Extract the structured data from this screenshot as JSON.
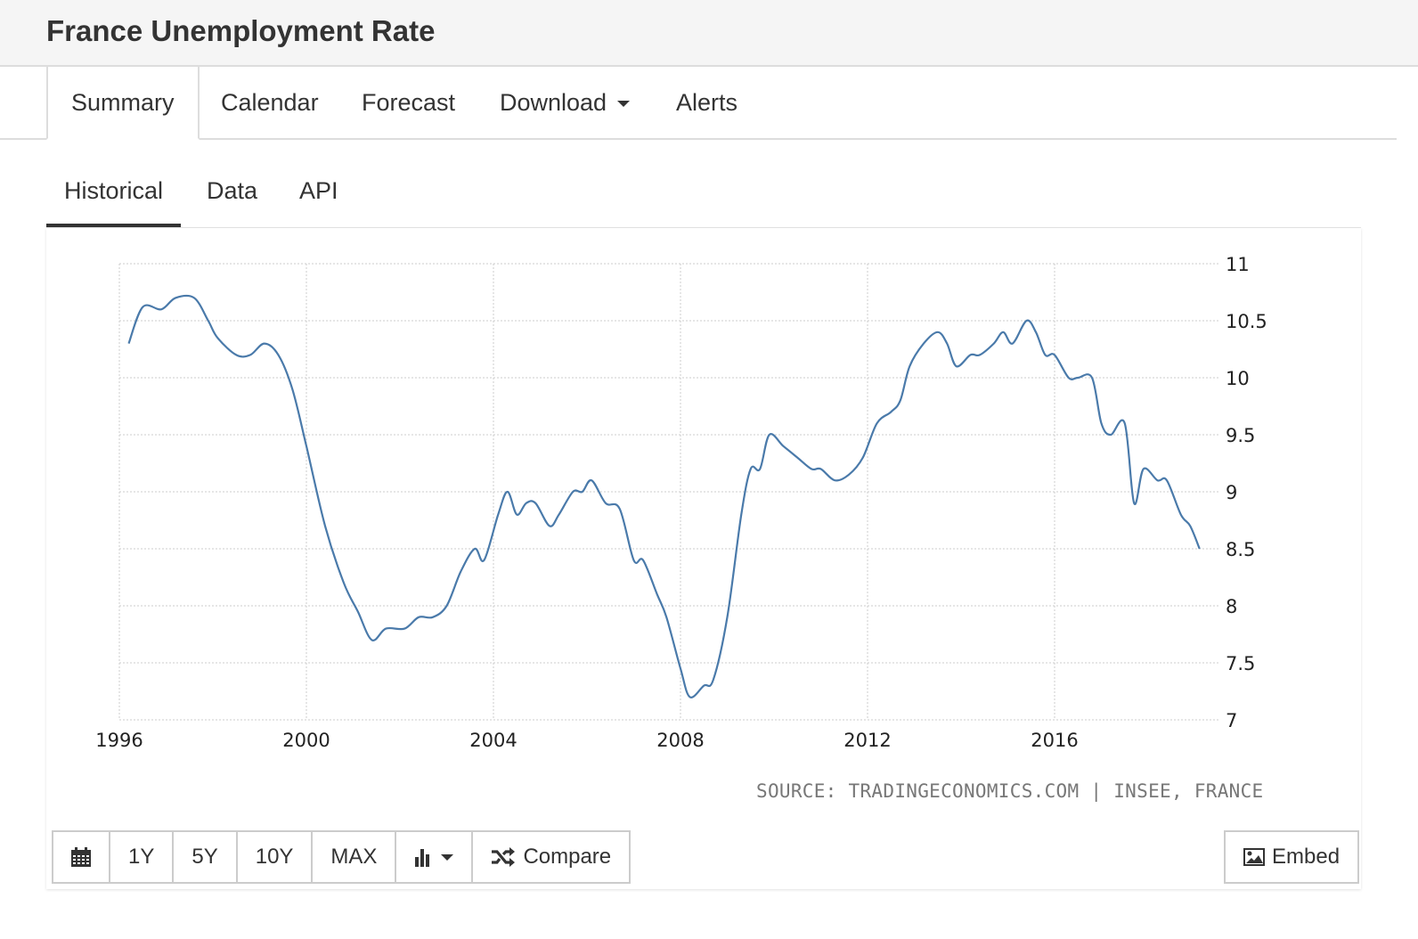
{
  "header": {
    "title": "France Unemployment Rate"
  },
  "nav": {
    "tabs": [
      {
        "label": "Summary"
      },
      {
        "label": "Calendar"
      },
      {
        "label": "Forecast"
      },
      {
        "label": "Download"
      },
      {
        "label": "Alerts"
      }
    ]
  },
  "subnav": {
    "tabs": [
      {
        "label": "Historical"
      },
      {
        "label": "Data"
      },
      {
        "label": "API"
      }
    ]
  },
  "source": "SOURCE: TRADINGECONOMICS.COM | INSEE, FRANCE",
  "controls": {
    "buttons": [
      "1Y",
      "5Y",
      "10Y",
      "MAX"
    ],
    "compare": "Compare",
    "embed": "Embed"
  },
  "colors": {
    "line": "#4a7aaa",
    "grid": "#cccccc"
  },
  "chart_data": {
    "type": "line",
    "title": "France Unemployment Rate",
    "xlabel": "",
    "ylabel": "",
    "xlim": [
      1996,
      2019.5
    ],
    "ylim": [
      7,
      11
    ],
    "x_ticks": [
      1996,
      2000,
      2004,
      2008,
      2012,
      2016
    ],
    "y_ticks": [
      7,
      7.5,
      8,
      8.5,
      9,
      9.5,
      10,
      10.5,
      11
    ],
    "y_tick_labels": [
      "7",
      "7.5",
      "8",
      "8.5",
      "9",
      "9.5",
      "10",
      "10.5",
      "11"
    ],
    "grid": true,
    "legend": "none",
    "series": [
      {
        "name": "Unemployment Rate",
        "points": [
          [
            1996.2,
            10.3
          ],
          [
            1996.5,
            10.62
          ],
          [
            1996.9,
            10.6
          ],
          [
            1997.2,
            10.7
          ],
          [
            1997.6,
            10.7
          ],
          [
            1997.9,
            10.5
          ],
          [
            1998.1,
            10.35
          ],
          [
            1998.5,
            10.2
          ],
          [
            1998.8,
            10.2
          ],
          [
            1999.1,
            10.3
          ],
          [
            1999.4,
            10.2
          ],
          [
            1999.7,
            9.9
          ],
          [
            2000.0,
            9.4
          ],
          [
            2000.4,
            8.7
          ],
          [
            2000.8,
            8.2
          ],
          [
            2001.1,
            7.95
          ],
          [
            2001.4,
            7.7
          ],
          [
            2001.7,
            7.8
          ],
          [
            2002.1,
            7.8
          ],
          [
            2002.4,
            7.9
          ],
          [
            2002.7,
            7.9
          ],
          [
            2003.0,
            8.0
          ],
          [
            2003.3,
            8.3
          ],
          [
            2003.6,
            8.5
          ],
          [
            2003.8,
            8.4
          ],
          [
            2004.1,
            8.8
          ],
          [
            2004.3,
            9.0
          ],
          [
            2004.5,
            8.8
          ],
          [
            2004.7,
            8.9
          ],
          [
            2004.9,
            8.9
          ],
          [
            2005.2,
            8.7
          ],
          [
            2005.4,
            8.8
          ],
          [
            2005.7,
            9.0
          ],
          [
            2005.9,
            9.0
          ],
          [
            2006.1,
            9.1
          ],
          [
            2006.4,
            8.9
          ],
          [
            2006.7,
            8.85
          ],
          [
            2007.0,
            8.4
          ],
          [
            2007.2,
            8.4
          ],
          [
            2007.5,
            8.1
          ],
          [
            2007.7,
            7.9
          ],
          [
            2008.0,
            7.45
          ],
          [
            2008.2,
            7.2
          ],
          [
            2008.5,
            7.3
          ],
          [
            2008.7,
            7.35
          ],
          [
            2009.0,
            7.9
          ],
          [
            2009.3,
            8.8
          ],
          [
            2009.5,
            9.2
          ],
          [
            2009.7,
            9.2
          ],
          [
            2009.9,
            9.5
          ],
          [
            2010.2,
            9.4
          ],
          [
            2010.5,
            9.3
          ],
          [
            2010.8,
            9.2
          ],
          [
            2011.0,
            9.2
          ],
          [
            2011.3,
            9.1
          ],
          [
            2011.6,
            9.15
          ],
          [
            2011.9,
            9.3
          ],
          [
            2012.2,
            9.6
          ],
          [
            2012.5,
            9.7
          ],
          [
            2012.7,
            9.8
          ],
          [
            2012.9,
            10.1
          ],
          [
            2013.2,
            10.3
          ],
          [
            2013.5,
            10.4
          ],
          [
            2013.7,
            10.3
          ],
          [
            2013.9,
            10.1
          ],
          [
            2014.2,
            10.2
          ],
          [
            2014.4,
            10.2
          ],
          [
            2014.7,
            10.3
          ],
          [
            2014.9,
            10.4
          ],
          [
            2015.1,
            10.3
          ],
          [
            2015.4,
            10.5
          ],
          [
            2015.6,
            10.4
          ],
          [
            2015.8,
            10.2
          ],
          [
            2016.0,
            10.2
          ],
          [
            2016.3,
            10.0
          ],
          [
            2016.5,
            10.0
          ],
          [
            2016.8,
            10.0
          ],
          [
            2017.0,
            9.6
          ],
          [
            2017.2,
            9.5
          ],
          [
            2017.5,
            9.6
          ],
          [
            2017.7,
            8.9
          ],
          [
            2017.9,
            9.2
          ],
          [
            2018.2,
            9.1
          ],
          [
            2018.4,
            9.1
          ],
          [
            2018.7,
            8.8
          ],
          [
            2018.9,
            8.7
          ],
          [
            2019.1,
            8.5
          ]
        ]
      }
    ]
  }
}
